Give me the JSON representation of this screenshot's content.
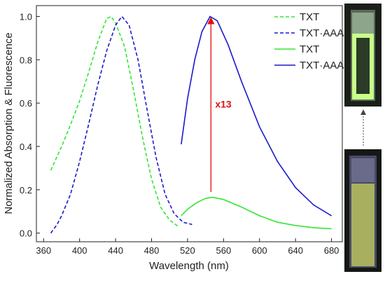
{
  "chart_data": {
    "type": "line",
    "x_label": "Wavelength (nm)",
    "y_label": "Normalized Absorption & Fluorescence",
    "xlim": [
      352,
      692
    ],
    "ylim": [
      -0.04,
      1.05
    ],
    "xticks": [
      360,
      400,
      440,
      480,
      520,
      560,
      600,
      640,
      680
    ],
    "yticks": [
      {
        "value": 0,
        "label": "0.0"
      },
      0.2,
      0.4,
      0.6,
      0.8,
      {
        "value": 1,
        "label": "1.0"
      }
    ],
    "legend": "upper right",
    "series": [
      {
        "name": "TXT",
        "color": "#33e633",
        "dashed": true,
        "x": [
          368,
          380,
          390,
          400,
          410,
          420,
          430,
          435,
          440,
          450,
          460,
          470,
          480,
          490,
          500,
          510
        ],
        "values": [
          0.29,
          0.4,
          0.5,
          0.61,
          0.74,
          0.88,
          0.99,
          1.0,
          0.97,
          0.86,
          0.66,
          0.44,
          0.25,
          0.12,
          0.06,
          0.03
        ]
      },
      {
        "name": "TXT·AAA",
        "color": "#1a1acc",
        "dashed": true,
        "x": [
          368,
          375,
          380,
          390,
          400,
          410,
          420,
          430,
          440,
          447,
          455,
          465,
          475,
          485,
          495,
          505,
          515,
          525
        ],
        "values": [
          0.0,
          0.04,
          0.08,
          0.18,
          0.33,
          0.5,
          0.68,
          0.84,
          0.96,
          1.0,
          0.96,
          0.8,
          0.57,
          0.35,
          0.18,
          0.09,
          0.05,
          0.04
        ]
      },
      {
        "name": "TXT",
        "color": "#33e633",
        "dashed": false,
        "x": [
          513,
          520,
          530,
          540,
          548,
          560,
          580,
          600,
          620,
          640,
          660,
          680
        ],
        "values": [
          0.08,
          0.11,
          0.14,
          0.16,
          0.165,
          0.155,
          0.12,
          0.08,
          0.05,
          0.035,
          0.025,
          0.02
        ]
      },
      {
        "name": "TXT·AAA",
        "color": "#1a1acc",
        "dashed": false,
        "x": [
          513,
          520,
          528,
          536,
          545,
          553,
          565,
          580,
          600,
          620,
          640,
          660,
          680
        ],
        "values": [
          0.41,
          0.62,
          0.8,
          0.93,
          1.0,
          0.98,
          0.87,
          0.7,
          0.49,
          0.33,
          0.21,
          0.13,
          0.08
        ]
      }
    ],
    "annotation": {
      "text": "x13",
      "color": "#e01010",
      "x": 546,
      "y": [
        0.19,
        1.0
      ]
    }
  }
}
